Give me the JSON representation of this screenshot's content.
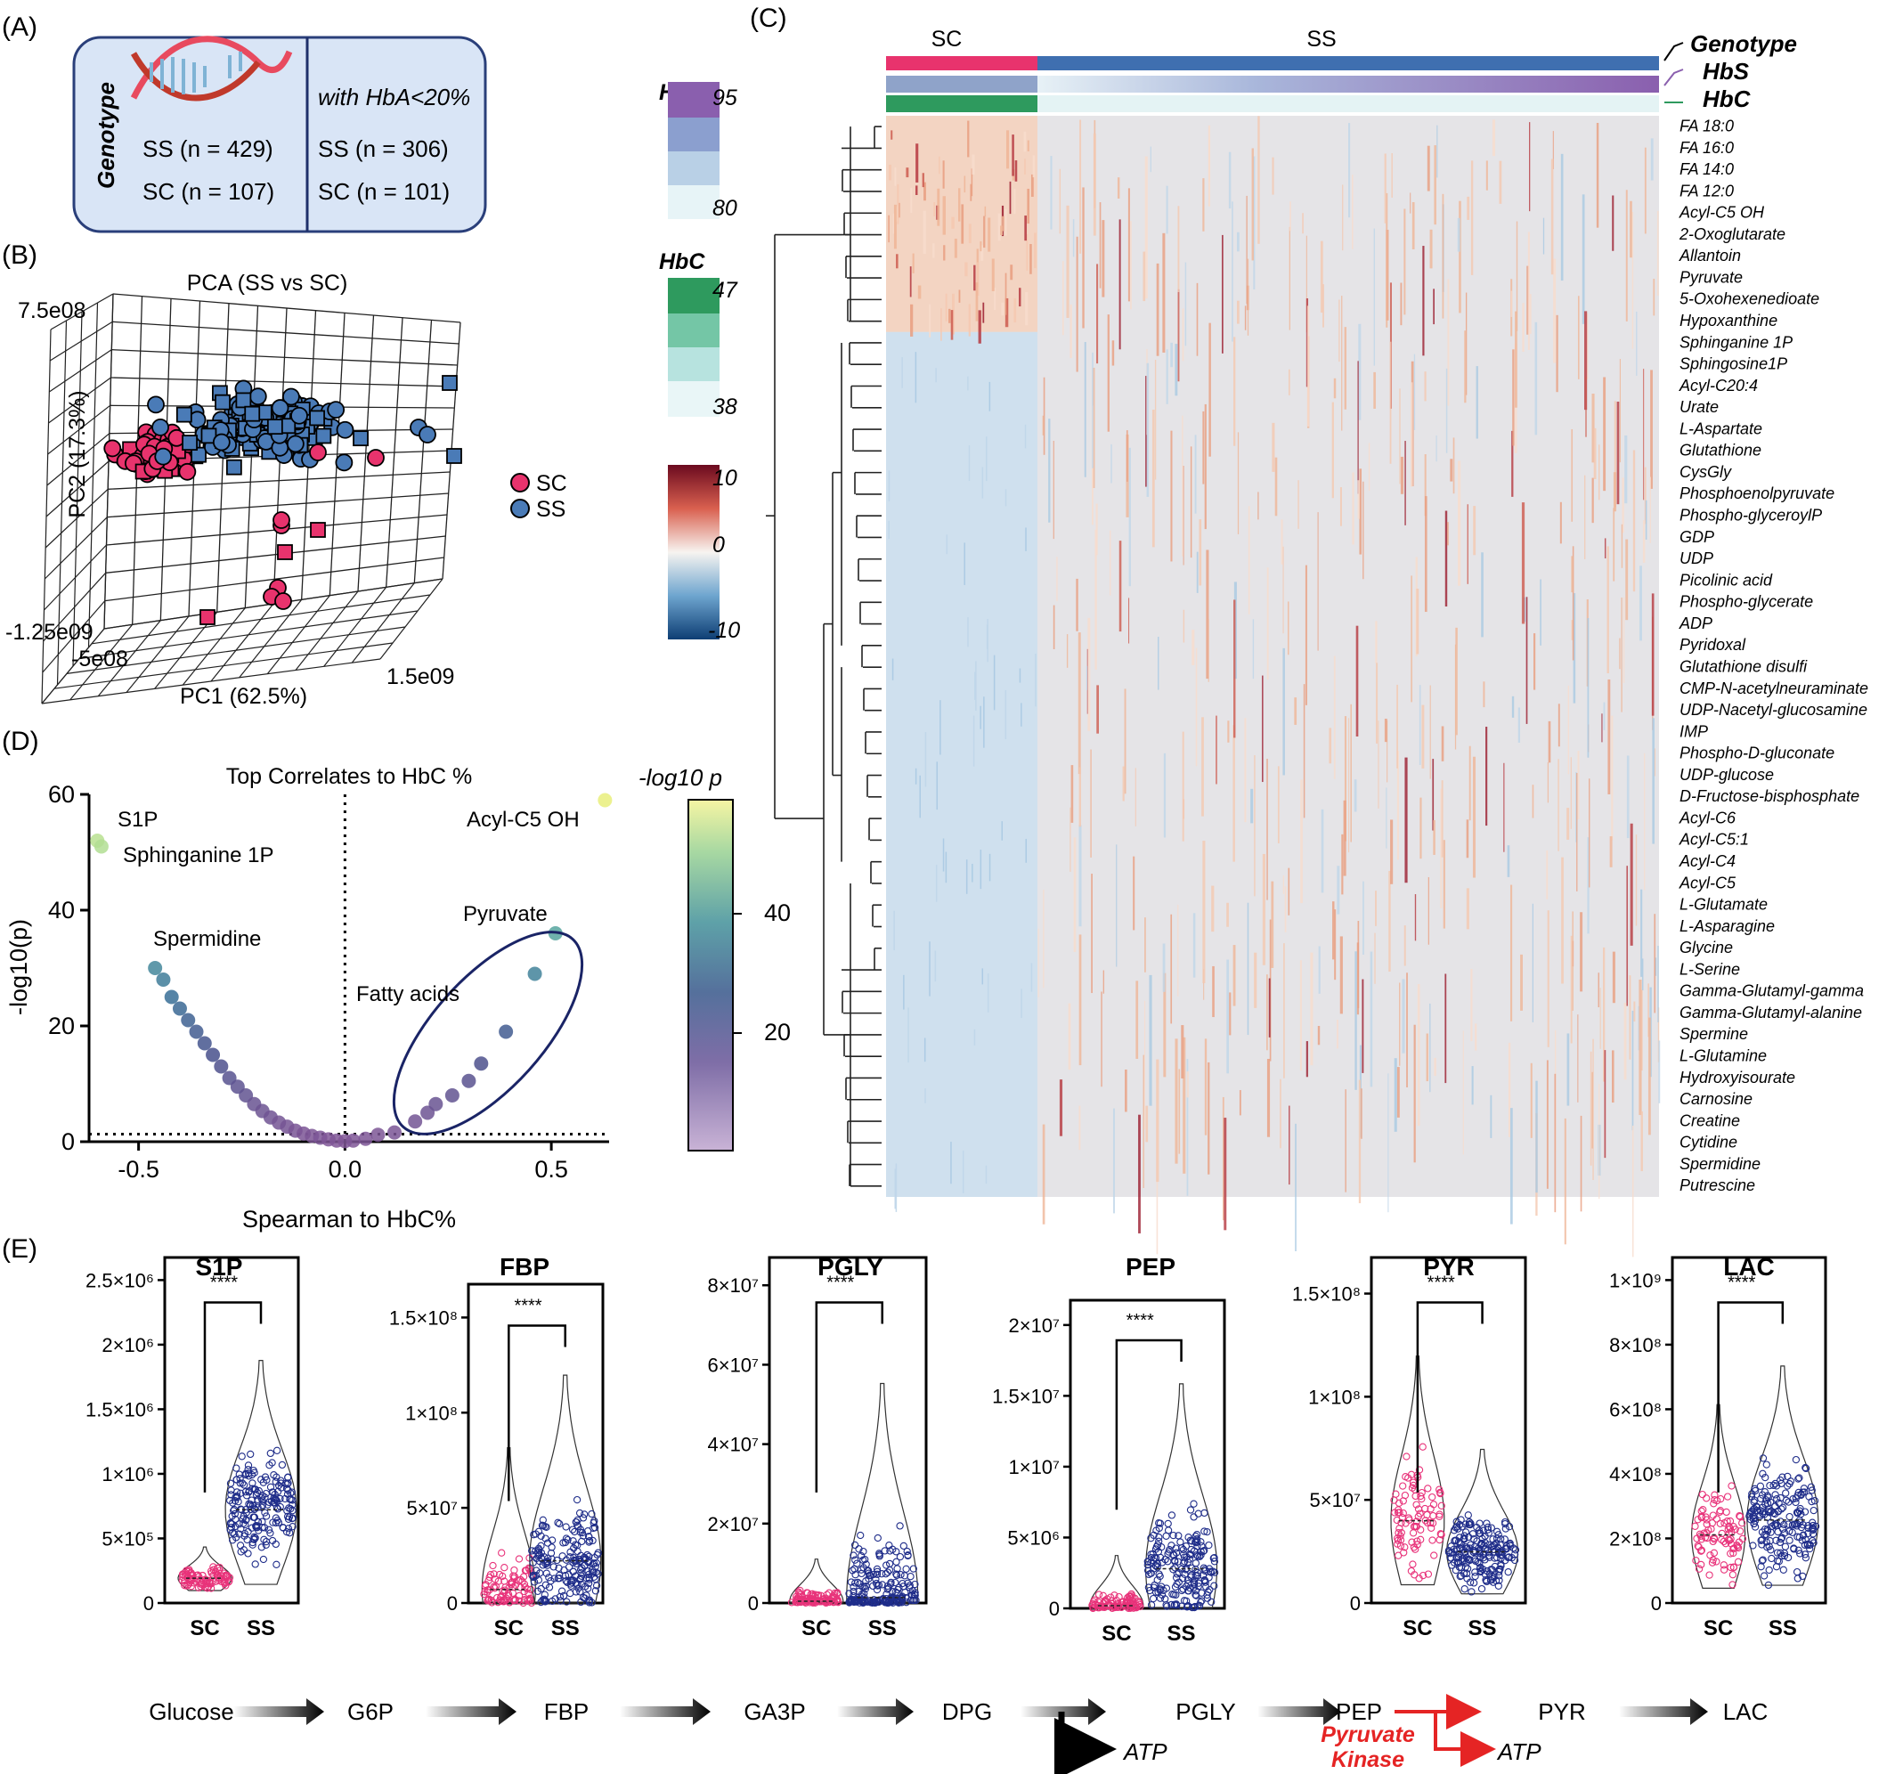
{
  "panel_labels": {
    "a": "(A)",
    "b": "(B)",
    "c": "(C)",
    "d": "(D)",
    "e": "(E)"
  },
  "panel_a": {
    "axis_label": "Genotype",
    "left_rows": [
      "SS (n = 429)",
      "SC (n = 107)"
    ],
    "right_header": "with HbA<20%",
    "right_rows": [
      "SS (n = 306)",
      "SC (n = 101)"
    ]
  },
  "panel_b": {
    "title": "PCA (SS vs SC)",
    "ylabel": "PC2 (17.3%)",
    "xlabel": "PC1 (62.5%)",
    "ytick_top": "7.5e08",
    "ytick_bottom": "-1.25e09",
    "xtick_left": "-5e08",
    "xtick_right": "1.5e09",
    "legend": [
      {
        "label": "SC",
        "color": "#e8336d"
      },
      {
        "label": "SS",
        "color": "#4a7bb7"
      }
    ]
  },
  "panel_c": {
    "col_groups": [
      {
        "label": "SC",
        "color": "#e8336d"
      },
      {
        "label": "SS",
        "color": "#3f6fb0"
      }
    ],
    "tracks": [
      "Genotype",
      "HbS",
      "HbC"
    ],
    "hbs_scale": {
      "title": "HbS",
      "max": "95",
      "min": "80",
      "colors": [
        "#8a5fae",
        "#8b9fcf",
        "#b9d0e6",
        "#e7f4f7"
      ]
    },
    "hbc_scale": {
      "title": "HbC",
      "max": "47",
      "min": "38",
      "colors": [
        "#2e9a5e",
        "#74c6a6",
        "#b7e3df",
        "#e9f6f7"
      ]
    },
    "heat_scale": {
      "max": "10",
      "mid": "0",
      "min": "-10"
    },
    "rows": [
      "FA 18:0",
      "FA 16:0",
      "FA 14:0",
      "FA 12:0",
      "Acyl-C5 OH",
      "2-Oxoglutarate",
      "Allantoin",
      "Pyruvate",
      "5-Oxohexenedioate",
      "Hypoxanthine",
      "Sphinganine 1P",
      "Sphingosine1P",
      "Acyl-C20:4",
      "Urate",
      "L-Aspartate",
      "Glutathione",
      "CysGly",
      "Phosphoenolpyruvate",
      "Phospho-glyceroylP",
      "GDP",
      "UDP",
      "Picolinic acid",
      "Phospho-glycerate",
      "ADP",
      "Pyridoxal",
      "Glutathione disulfi",
      "CMP-N-acetylneuraminate",
      "UDP-Nacetyl-glucosamine",
      "IMP",
      "Phospho-D-gluconate",
      "UDP-glucose",
      "D-Fructose-bisphosphate",
      "Acyl-C6",
      "Acyl-C5:1",
      "Acyl-C4",
      "Acyl-C5",
      "L-Glutamate",
      "L-Asparagine",
      "Glycine",
      "L-Serine",
      "Gamma-Glutamyl-gamma",
      "Gamma-Glutamyl-alanine",
      "Spermine",
      "L-Glutamine",
      "Hydroxyisourate",
      "Carnosine",
      "Creatine",
      "Cytidine",
      "Spermidine",
      "Putrescine"
    ]
  },
  "chart_data": [
    {
      "type": "scatter",
      "title": "Top Correlates to HbC %",
      "xlabel": "Spearman to HbC%",
      "ylabel": "-log10(p)",
      "xlim": [
        -0.62,
        0.64
      ],
      "ylim": [
        0,
        60
      ],
      "xticks": [
        "-0.5",
        "0.0",
        "0.5"
      ],
      "yticks": [
        "0",
        "20",
        "40",
        "60"
      ],
      "colorbar": {
        "title": "-log10 p",
        "ticks": [
          "20",
          "40"
        ]
      },
      "annotations": [
        "S1P",
        "Sphinganine 1P",
        "Acyl-C5 OH",
        "Pyruvate",
        "Spermidine",
        "Fatty acids"
      ],
      "points": [
        {
          "x": -0.6,
          "y": 52,
          "c": 52
        },
        {
          "x": -0.59,
          "y": 51,
          "c": 51
        },
        {
          "x": -0.46,
          "y": 30,
          "c": 30
        },
        {
          "x": -0.44,
          "y": 28,
          "c": 28
        },
        {
          "x": -0.42,
          "y": 25,
          "c": 25
        },
        {
          "x": -0.4,
          "y": 23,
          "c": 23
        },
        {
          "x": -0.38,
          "y": 21,
          "c": 21
        },
        {
          "x": -0.36,
          "y": 19,
          "c": 19
        },
        {
          "x": -0.34,
          "y": 17,
          "c": 17
        },
        {
          "x": -0.32,
          "y": 15,
          "c": 15
        },
        {
          "x": -0.3,
          "y": 13,
          "c": 13
        },
        {
          "x": -0.28,
          "y": 11,
          "c": 11
        },
        {
          "x": -0.26,
          "y": 9.5,
          "c": 9.5
        },
        {
          "x": -0.24,
          "y": 8,
          "c": 8
        },
        {
          "x": -0.22,
          "y": 6.5,
          "c": 6.5
        },
        {
          "x": -0.2,
          "y": 5.3,
          "c": 5.3
        },
        {
          "x": -0.18,
          "y": 4.2,
          "c": 4.2
        },
        {
          "x": -0.16,
          "y": 3.3,
          "c": 3.3
        },
        {
          "x": -0.14,
          "y": 2.6,
          "c": 2.6
        },
        {
          "x": -0.12,
          "y": 1.9,
          "c": 1.9
        },
        {
          "x": -0.1,
          "y": 1.4,
          "c": 1.4
        },
        {
          "x": -0.08,
          "y": 1.0,
          "c": 1.0
        },
        {
          "x": -0.06,
          "y": 0.7,
          "c": 0.7
        },
        {
          "x": -0.04,
          "y": 0.4,
          "c": 0.4
        },
        {
          "x": -0.02,
          "y": 0.2,
          "c": 0.2
        },
        {
          "x": 0.0,
          "y": 0.1,
          "c": 0.1
        },
        {
          "x": 0.02,
          "y": 0.2,
          "c": 0.2
        },
        {
          "x": 0.05,
          "y": 0.5,
          "c": 0.5
        },
        {
          "x": 0.08,
          "y": 1.2,
          "c": 1.2
        },
        {
          "x": 0.12,
          "y": 1.6,
          "c": 1.6
        },
        {
          "x": 0.17,
          "y": 3.5,
          "c": 3.5
        },
        {
          "x": 0.2,
          "y": 5,
          "c": 5
        },
        {
          "x": 0.22,
          "y": 6.5,
          "c": 6.5
        },
        {
          "x": 0.26,
          "y": 8,
          "c": 8
        },
        {
          "x": 0.3,
          "y": 10.5,
          "c": 10.5
        },
        {
          "x": 0.33,
          "y": 13.5,
          "c": 13.5
        },
        {
          "x": 0.39,
          "y": 19,
          "c": 19
        },
        {
          "x": 0.46,
          "y": 29,
          "c": 29
        },
        {
          "x": 0.51,
          "y": 36,
          "c": 36
        },
        {
          "x": 0.63,
          "y": 59,
          "c": 59
        }
      ]
    },
    {
      "type": "violin",
      "panels": [
        {
          "title": "S1P",
          "categories": [
            "SC",
            "SS"
          ],
          "yticks": [
            "0",
            "5×10⁵",
            "1×10⁶",
            "1.5×10⁶",
            "2×10⁶",
            "2.5×10⁶"
          ],
          "ymax": 2500000,
          "medians": [
            200000,
            750000
          ],
          "ranges": [
            [
              100000,
              450000
            ],
            [
              150000,
              1950000
            ]
          ],
          "sig": "****"
        },
        {
          "title": "FBP",
          "categories": [
            "SC",
            "SS"
          ],
          "yticks": [
            "0",
            "5×10⁷",
            "1×10⁸",
            "1.5×10⁸"
          ],
          "ymax": 170000000,
          "medians": [
            8000000,
            25000000
          ],
          "ranges": [
            [
              0,
              92000000
            ],
            [
              0,
              135000000
            ]
          ],
          "sig": "****"
        },
        {
          "title": "PGLY",
          "categories": [
            "SC",
            "SS"
          ],
          "yticks": [
            "0",
            "2×10⁷",
            "4×10⁷",
            "6×10⁷",
            "8×10⁷"
          ],
          "ymax": 85000000,
          "medians": [
            500000,
            1500000
          ],
          "ranges": [
            [
              0,
              12000000
            ],
            [
              0,
              60000000
            ]
          ],
          "sig": "****"
        },
        {
          "title": "PEP",
          "categories": [
            "SC",
            "SS"
          ],
          "yticks": [
            "0",
            "5×10⁶",
            "1×10⁷",
            "1.5×10⁷",
            "2×10⁷"
          ],
          "ymax": 21000000,
          "medians": [
            200000,
            3000000
          ],
          "ranges": [
            [
              0,
              4000000
            ],
            [
              0,
              17000000
            ]
          ],
          "sig": "****"
        },
        {
          "title": "PYR",
          "categories": [
            "SC",
            "SS"
          ],
          "yticks": [
            "0",
            "5×10⁷",
            "1×10⁸",
            "1.5×10⁸"
          ],
          "ymax": 170000000,
          "medians": [
            45000000,
            28000000
          ],
          "ranges": [
            [
              10000000,
              135000000
            ],
            [
              5000000,
              84000000
            ]
          ],
          "sig": "****"
        },
        {
          "title": "LAC",
          "categories": [
            "SC",
            "SS"
          ],
          "yticks": [
            "0",
            "2×10⁸",
            "4×10⁸",
            "6×10⁸",
            "8×10⁸",
            "1×10⁹"
          ],
          "ymax": 1050000000,
          "medians": [
            230000000,
            280000000
          ],
          "ranges": [
            [
              50000000,
              670000000
            ],
            [
              60000000,
              800000000
            ]
          ],
          "sig": "****"
        }
      ],
      "colors": {
        "SC": "#e8337a",
        "SS": "#1f2d8a"
      }
    }
  ],
  "pathway": {
    "nodes": [
      "Glucose",
      "G6P",
      "FBP",
      "GA3P",
      "DPG",
      "PGLY",
      "PEP",
      "PYR",
      "LAC"
    ],
    "atp": "ATP",
    "enzyme_line1": "Pyruvate",
    "enzyme_line2": "Kinase"
  }
}
